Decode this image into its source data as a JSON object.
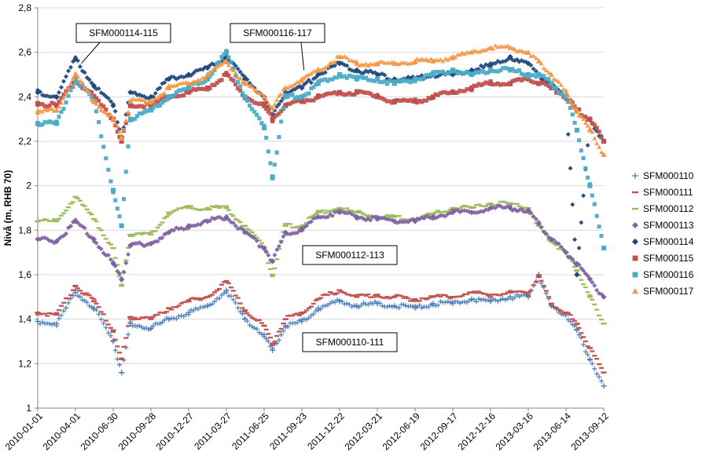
{
  "chart_data": {
    "type": "scatter",
    "title": "",
    "xlabel": "",
    "ylabel": "Nivå (m, RHB 70)",
    "xlim": [
      "2010-01-01",
      "2013-09-12"
    ],
    "ylim": [
      1,
      2.8
    ],
    "yticks": [
      1,
      1.2,
      1.4,
      1.6,
      1.8,
      2,
      2.2,
      2.4,
      2.6,
      2.8
    ],
    "ytick_labels": [
      "1",
      "1,2",
      "1,4",
      "1,6",
      "1,8",
      "2",
      "2,2",
      "2,4",
      "2,6",
      "2,8"
    ],
    "xticks": [
      "2010-01-01",
      "2010-04-01",
      "2010-06-30",
      "2010-09-28",
      "2010-12-27",
      "2011-03-27",
      "2011-06-25",
      "2011-09-23",
      "2011-12-22",
      "2012-03-21",
      "2012-06-19",
      "2012-09-17",
      "2012-12-16",
      "2013-03-16",
      "2013-06-14",
      "2013-09-12"
    ],
    "legend_position": "right",
    "grid": "horizontal",
    "annotations": [
      {
        "text": "SFM000114-115",
        "points_to": [
          "2010-04-15",
          2.55
        ]
      },
      {
        "text": "SFM000116-117",
        "points_to": [
          "2011-09-28",
          2.52
        ]
      },
      {
        "text": "SFM000112-113",
        "points_to": null
      },
      {
        "text": "SFM000110-111",
        "points_to": null
      }
    ],
    "series": [
      {
        "name": "SFM000110",
        "marker": "plus",
        "color": "#4A7EBB",
        "x": [
          "2010-01-01",
          "2010-02-15",
          "2010-04-01",
          "2010-05-15",
          "2010-06-30",
          "2010-07-20",
          "2010-08-10",
          "2010-09-28",
          "2010-11-10",
          "2010-12-27",
          "2011-02-10",
          "2011-03-27",
          "2011-05-10",
          "2011-06-25",
          "2011-07-15",
          "2011-08-15",
          "2011-09-23",
          "2011-11-01",
          "2011-12-22",
          "2012-02-01",
          "2012-03-21",
          "2012-05-01",
          "2012-06-19",
          "2012-08-01",
          "2012-09-17",
          "2012-11-01",
          "2012-12-16",
          "2013-02-01",
          "2013-03-16",
          "2013-04-10",
          "2013-05-10",
          "2013-06-14",
          "2013-07-10",
          "2013-08-10",
          "2013-09-12"
        ],
        "y": [
          1.39,
          1.38,
          1.52,
          1.45,
          1.3,
          1.16,
          1.38,
          1.36,
          1.4,
          1.43,
          1.46,
          1.53,
          1.4,
          1.33,
          1.26,
          1.37,
          1.39,
          1.45,
          1.48,
          1.46,
          1.47,
          1.46,
          1.45,
          1.47,
          1.47,
          1.49,
          1.48,
          1.5,
          1.5,
          1.6,
          1.46,
          1.42,
          1.35,
          1.22,
          1.1
        ]
      },
      {
        "name": "SFM000111",
        "marker": "dash",
        "color": "#C0504D",
        "x": [
          "2010-01-01",
          "2010-02-15",
          "2010-04-01",
          "2010-05-15",
          "2010-06-30",
          "2010-07-20",
          "2010-08-10",
          "2010-09-28",
          "2010-11-10",
          "2010-12-27",
          "2011-02-10",
          "2011-03-27",
          "2011-05-10",
          "2011-06-25",
          "2011-07-15",
          "2011-08-15",
          "2011-09-23",
          "2011-11-01",
          "2011-12-22",
          "2012-02-01",
          "2012-03-21",
          "2012-05-01",
          "2012-06-19",
          "2012-08-01",
          "2012-09-17",
          "2012-11-01",
          "2012-12-16",
          "2013-02-01",
          "2013-03-16",
          "2013-04-10",
          "2013-05-10",
          "2013-06-14",
          "2013-07-10",
          "2013-08-10",
          "2013-09-12"
        ],
        "y": [
          1.43,
          1.42,
          1.55,
          1.48,
          1.35,
          1.22,
          1.41,
          1.4,
          1.45,
          1.48,
          1.5,
          1.57,
          1.44,
          1.37,
          1.29,
          1.4,
          1.43,
          1.49,
          1.53,
          1.5,
          1.51,
          1.5,
          1.49,
          1.5,
          1.5,
          1.52,
          1.51,
          1.52,
          1.52,
          1.59,
          1.47,
          1.43,
          1.38,
          1.27,
          1.16
        ]
      },
      {
        "name": "SFM000112",
        "marker": "dash",
        "color": "#9BBB59",
        "x": [
          "2010-01-01",
          "2010-02-15",
          "2010-04-01",
          "2010-05-15",
          "2010-06-30",
          "2010-07-20",
          "2010-08-10",
          "2010-09-28",
          "2010-11-10",
          "2010-12-27",
          "2011-02-10",
          "2011-03-27",
          "2011-05-10",
          "2011-06-25",
          "2011-07-15",
          "2011-08-15",
          "2011-09-23",
          "2011-11-01",
          "2011-12-22",
          "2012-02-01",
          "2012-03-21",
          "2012-05-01",
          "2012-06-19",
          "2012-08-01",
          "2012-09-17",
          "2012-11-01",
          "2012-12-16",
          "2013-02-01",
          "2013-03-16",
          "2013-04-10",
          "2013-05-10",
          "2013-06-14",
          "2013-07-10",
          "2013-08-10",
          "2013-09-12"
        ],
        "y": [
          1.84,
          1.84,
          1.95,
          1.85,
          1.72,
          1.55,
          1.78,
          1.78,
          1.88,
          1.9,
          1.9,
          1.9,
          1.82,
          1.72,
          1.6,
          1.82,
          1.82,
          1.88,
          1.9,
          1.88,
          1.86,
          1.86,
          1.85,
          1.87,
          1.9,
          1.9,
          1.92,
          1.92,
          1.9,
          1.82,
          1.75,
          1.7,
          1.62,
          1.5,
          1.38
        ]
      },
      {
        "name": "SFM000113",
        "marker": "diamond",
        "color": "#8064A2",
        "x": [
          "2010-01-01",
          "2010-02-15",
          "2010-04-01",
          "2010-05-15",
          "2010-06-30",
          "2010-07-20",
          "2010-08-10",
          "2010-09-28",
          "2010-11-10",
          "2010-12-27",
          "2011-02-10",
          "2011-03-27",
          "2011-05-10",
          "2011-06-25",
          "2011-07-15",
          "2011-08-15",
          "2011-09-23",
          "2011-11-01",
          "2011-12-22",
          "2012-02-01",
          "2012-03-21",
          "2012-05-01",
          "2012-06-19",
          "2012-08-01",
          "2012-09-17",
          "2012-11-01",
          "2012-12-16",
          "2013-02-01",
          "2013-03-16",
          "2013-04-10",
          "2013-05-10",
          "2013-06-14",
          "2013-07-10",
          "2013-08-10",
          "2013-09-12"
        ],
        "y": [
          1.76,
          1.75,
          1.84,
          1.76,
          1.65,
          1.58,
          1.73,
          1.74,
          1.79,
          1.82,
          1.84,
          1.86,
          1.79,
          1.72,
          1.66,
          1.79,
          1.8,
          1.86,
          1.88,
          1.86,
          1.85,
          1.84,
          1.84,
          1.86,
          1.88,
          1.88,
          1.9,
          1.9,
          1.89,
          1.83,
          1.76,
          1.7,
          1.65,
          1.58,
          1.5
        ]
      },
      {
        "name": "SFM000114",
        "marker": "diamond",
        "color": "#1F497D",
        "x": [
          "2010-01-01",
          "2010-02-15",
          "2010-04-01",
          "2010-05-15",
          "2010-06-30",
          "2010-07-20",
          "2010-08-10",
          "2010-09-28",
          "2010-11-10",
          "2010-12-27",
          "2011-02-10",
          "2011-03-27",
          "2011-05-10",
          "2011-06-25",
          "2011-07-15",
          "2011-08-15",
          "2011-09-23",
          "2011-11-01",
          "2011-12-22",
          "2012-02-01",
          "2012-03-21",
          "2012-05-01",
          "2012-06-19",
          "2012-08-01",
          "2012-09-17",
          "2012-11-01",
          "2012-12-16",
          "2013-02-01",
          "2013-03-16",
          "2013-04-10",
          "2013-05-10",
          "2013-06-14",
          "2013-07-10",
          "2013-08-10",
          "2013-09-12"
        ],
        "y": [
          2.42,
          2.4,
          2.57,
          2.45,
          2.36,
          2.22,
          2.42,
          2.4,
          2.48,
          2.5,
          2.53,
          2.58,
          2.48,
          2.4,
          2.32,
          2.42,
          2.44,
          2.5,
          2.55,
          2.52,
          2.5,
          2.48,
          2.48,
          2.5,
          2.5,
          2.52,
          2.54,
          2.58,
          2.55,
          2.5,
          2.45,
          2.4,
          1.6,
          2.3,
          2.2
        ]
      },
      {
        "name": "SFM000115",
        "marker": "square",
        "color": "#C0504D",
        "x": [
          "2010-01-01",
          "2010-02-15",
          "2010-04-01",
          "2010-05-15",
          "2010-06-30",
          "2010-07-20",
          "2010-08-10",
          "2010-09-28",
          "2010-11-10",
          "2010-12-27",
          "2011-02-10",
          "2011-03-27",
          "2011-05-10",
          "2011-06-25",
          "2011-07-15",
          "2011-08-15",
          "2011-09-23",
          "2011-11-01",
          "2011-12-22",
          "2012-02-01",
          "2012-03-21",
          "2012-05-01",
          "2012-06-19",
          "2012-08-01",
          "2012-09-17",
          "2012-11-01",
          "2012-12-16",
          "2013-02-01",
          "2013-03-16",
          "2013-04-10",
          "2013-05-10",
          "2013-06-14",
          "2013-07-10",
          "2013-08-10",
          "2013-09-12"
        ],
        "y": [
          2.37,
          2.36,
          2.48,
          2.4,
          2.3,
          2.2,
          2.36,
          2.36,
          2.4,
          2.42,
          2.44,
          2.5,
          2.4,
          2.36,
          2.3,
          2.36,
          2.38,
          2.4,
          2.42,
          2.42,
          2.4,
          2.38,
          2.38,
          2.4,
          2.42,
          2.44,
          2.46,
          2.46,
          2.48,
          2.46,
          2.44,
          2.4,
          2.34,
          2.3,
          2.2
        ]
      },
      {
        "name": "SFM000116",
        "marker": "square",
        "color": "#4BACC6",
        "x": [
          "2010-01-01",
          "2010-02-15",
          "2010-04-01",
          "2010-05-15",
          "2010-06-30",
          "2010-07-20",
          "2010-08-10",
          "2010-09-28",
          "2010-11-10",
          "2010-12-27",
          "2011-02-10",
          "2011-03-27",
          "2011-05-10",
          "2011-06-25",
          "2011-07-15",
          "2011-08-15",
          "2011-09-23",
          "2011-11-01",
          "2011-12-22",
          "2012-02-01",
          "2012-03-21",
          "2012-05-01",
          "2012-06-19",
          "2012-08-01",
          "2012-09-17",
          "2012-11-01",
          "2012-12-16",
          "2013-02-01",
          "2013-03-16",
          "2013-04-10",
          "2013-05-10",
          "2013-06-14",
          "2013-07-10",
          "2013-08-10",
          "2013-09-12"
        ],
        "y": [
          2.28,
          2.28,
          2.48,
          2.38,
          1.98,
          1.82,
          2.3,
          2.34,
          2.4,
          2.44,
          2.48,
          2.6,
          2.4,
          2.26,
          2.04,
          2.4,
          2.4,
          2.46,
          2.5,
          2.48,
          2.48,
          2.46,
          2.48,
          2.5,
          2.52,
          2.5,
          2.52,
          2.52,
          2.5,
          2.5,
          2.46,
          2.4,
          2.25,
          2.0,
          1.72
        ]
      },
      {
        "name": "SFM000117",
        "marker": "triangle",
        "color": "#F79646",
        "x": [
          "2010-01-01",
          "2010-02-15",
          "2010-04-01",
          "2010-05-15",
          "2010-06-30",
          "2010-07-20",
          "2010-08-10",
          "2010-09-28",
          "2010-11-10",
          "2010-12-27",
          "2011-02-10",
          "2011-03-27",
          "2011-05-10",
          "2011-06-25",
          "2011-07-15",
          "2011-08-15",
          "2011-09-23",
          "2011-11-01",
          "2011-12-22",
          "2012-02-01",
          "2012-03-21",
          "2012-05-01",
          "2012-06-19",
          "2012-08-01",
          "2012-09-17",
          "2012-11-01",
          "2012-12-16",
          "2013-02-01",
          "2013-03-16",
          "2013-04-10",
          "2013-05-10",
          "2013-06-14",
          "2013-07-10",
          "2013-08-10",
          "2013-09-12"
        ],
        "y": [
          2.33,
          2.34,
          2.5,
          2.38,
          2.3,
          2.22,
          2.38,
          2.38,
          2.44,
          2.46,
          2.5,
          2.56,
          2.46,
          2.4,
          2.35,
          2.44,
          2.48,
          2.52,
          2.58,
          2.55,
          2.55,
          2.55,
          2.56,
          2.56,
          2.58,
          2.6,
          2.62,
          2.62,
          2.6,
          2.56,
          2.5,
          2.42,
          2.34,
          2.25,
          2.14
        ]
      }
    ]
  }
}
